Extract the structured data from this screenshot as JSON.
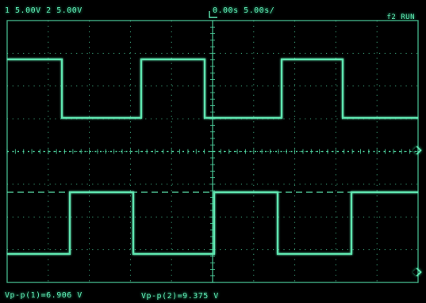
{
  "colors": {
    "trace": "#5ee6b0",
    "grid": "#4fd6a2",
    "background": "#000000"
  },
  "header": {
    "channels": "1 5.00V  2 5.00V",
    "timebase": "0.00s  5.00s/",
    "mode": "f2 RUN"
  },
  "footer": {
    "vpp_ch1": "Vp-p(1)=6.906 V",
    "vpp_ch2": "Vp-p(2)=9.375 V"
  },
  "markers": {
    "ch1": "channel-1-marker",
    "ch2": "channel-2-marker"
  }
}
